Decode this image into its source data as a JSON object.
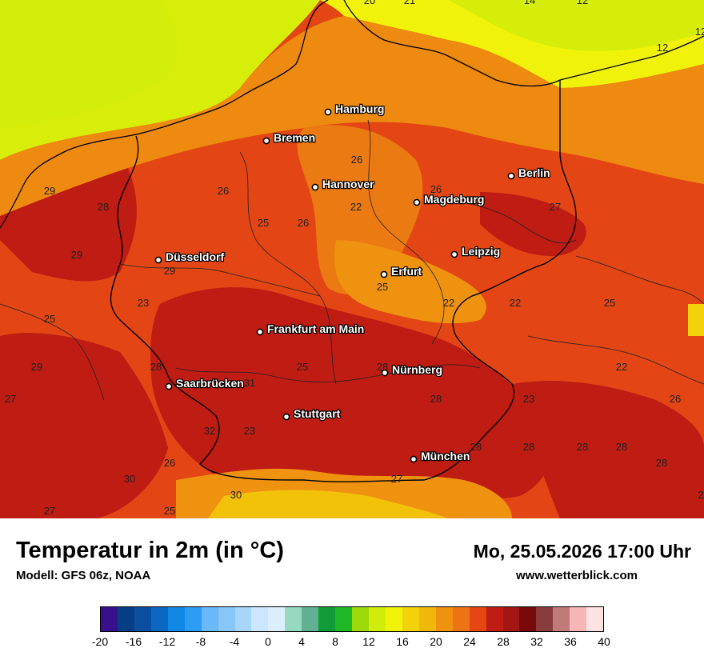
{
  "map": {
    "cities": [
      {
        "name": "Hamburg"
      },
      {
        "name": "Bremen"
      },
      {
        "name": "Hannover"
      },
      {
        "name": "Berlin"
      },
      {
        "name": "Magdeburg"
      },
      {
        "name": "Düsseldorf"
      },
      {
        "name": "Leipzig"
      },
      {
        "name": "Erfurt"
      },
      {
        "name": "Frankfurt am Main"
      },
      {
        "name": "Nürnberg"
      },
      {
        "name": "Saarbrücken"
      },
      {
        "name": "Stuttgart"
      },
      {
        "name": "München"
      }
    ],
    "contour_labels": [
      "20",
      "21",
      "14",
      "12",
      "12",
      "12",
      "26",
      "26",
      "26",
      "29",
      "28",
      "25",
      "26",
      "22",
      "27",
      "29",
      "29",
      "23",
      "25",
      "22",
      "22",
      "25",
      "25",
      "29",
      "28",
      "25",
      "28",
      "31",
      "28",
      "23",
      "22",
      "26",
      "27",
      "28",
      "32",
      "23",
      "28",
      "28",
      "28",
      "28",
      "26",
      "30",
      "30",
      "27",
      "27",
      "25",
      "2"
    ]
  },
  "footer": {
    "title": "Temperatur in 2m (in °C)",
    "model": "Modell: GFS 06z, NOAA",
    "datetime": "Mo, 25.05.2026 17:00 Uhr",
    "website": "www.wetterblick.com"
  },
  "legend": {
    "colors": [
      "#3a0f8c",
      "#063e86",
      "#0c4fa0",
      "#0a68c0",
      "#1188e6",
      "#2c9df4",
      "#6bb8f8",
      "#88c6fa",
      "#a8d6fb",
      "#cce6fd",
      "#dcedfb",
      "#96d9c0",
      "#62b094",
      "#109c38",
      "#1fb826",
      "#9cd80a",
      "#d0ec0a",
      "#f0f20a",
      "#f2d20a",
      "#f0b808",
      "#ef9210",
      "#ec7414",
      "#e54614",
      "#bf1c14",
      "#a41614",
      "#7a0a0a",
      "#8a3c3c",
      "#c07a7a",
      "#f7b6b6",
      "#fde2e2"
    ],
    "ticks": [
      "-20",
      "-16",
      "-12",
      "-8",
      "-4",
      "0",
      "4",
      "8",
      "12",
      "16",
      "20",
      "24",
      "28",
      "32",
      "36",
      "40"
    ]
  }
}
